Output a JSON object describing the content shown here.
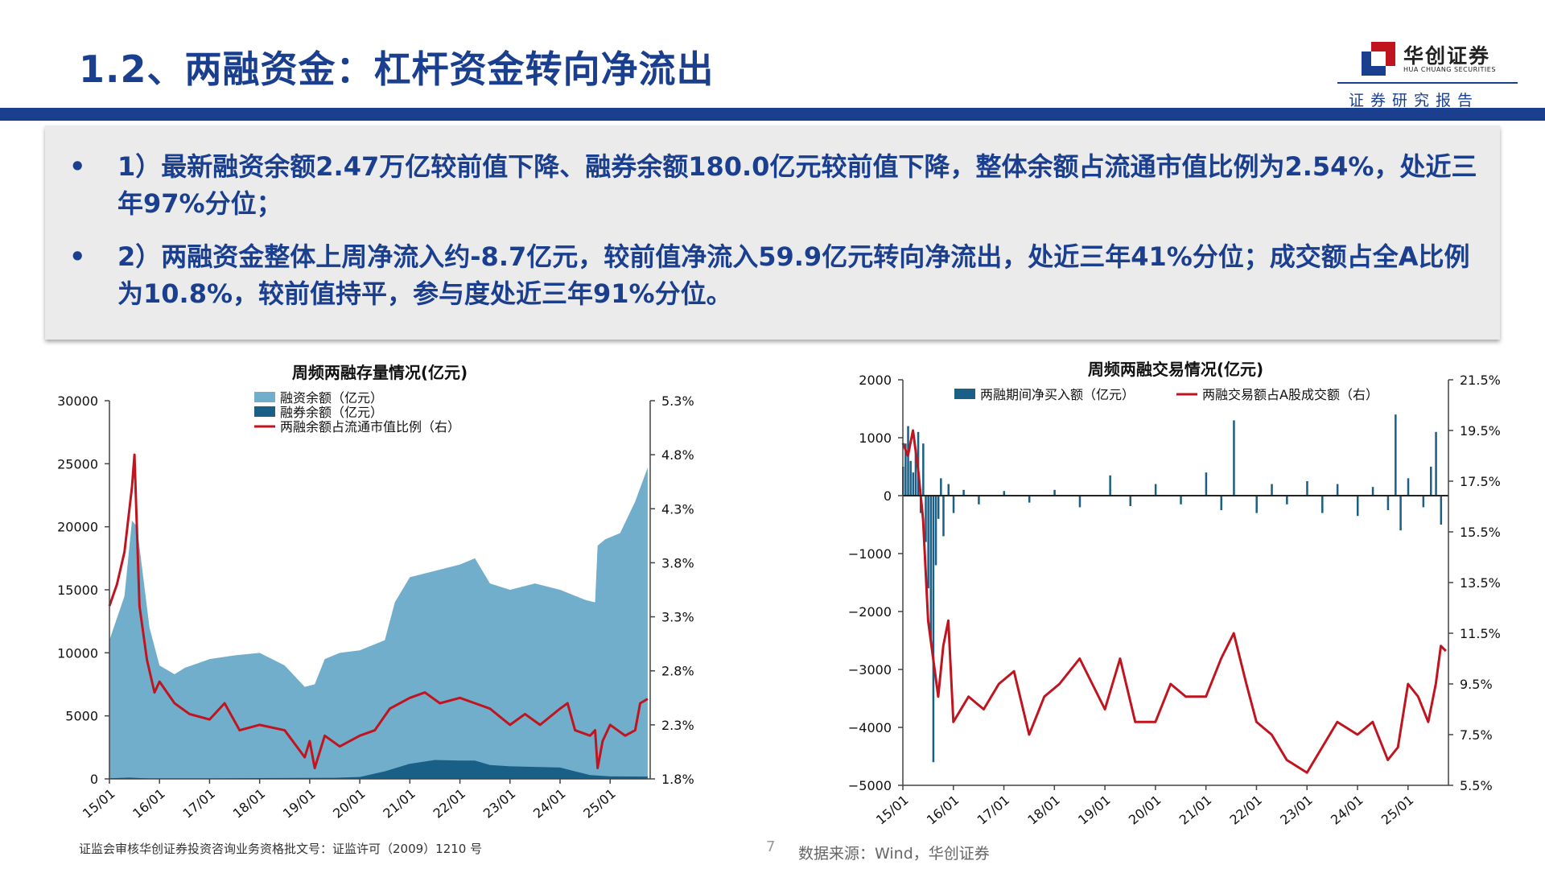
{
  "header": {
    "title": "1.2、两融资金：杠杆资金转向净流出",
    "logo_cn": "华创证券",
    "logo_en": "HUA CHUANG SECURITIES",
    "logo_sub": "证券研究报告",
    "brand_color": "#1b3f8f"
  },
  "summary": {
    "bullets": [
      {
        "marker": "•",
        "text": "1）最新融资余额2.47万亿较前值下降、融券余额180.0亿元较前值下降，整体余额占流通市值比例为2.54%，处近三年97%分位；"
      },
      {
        "marker": "•",
        "text": "2）两融资金整体上周净流入约-8.7亿元，较前值净流入59.9亿元转向净流出，处近三年41%分位；成交额占全A比例为10.8%，较前值持平，参与度处近三年91%分位。"
      }
    ]
  },
  "chart_data": [
    {
      "type": "area",
      "title": "周频两融存量情况(亿元)",
      "x_ticks": [
        "15/01",
        "16/01",
        "17/01",
        "18/01",
        "19/01",
        "20/01",
        "21/01",
        "22/01",
        "23/01",
        "24/01",
        "25/01"
      ],
      "y_left_ticks": [
        "0",
        "5000",
        "10000",
        "15000",
        "20000",
        "25000",
        "30000"
      ],
      "y_right_ticks": [
        "1.8%",
        "2.3%",
        "2.8%",
        "3.3%",
        "3.8%",
        "4.3%",
        "4.8%",
        "5.3%"
      ],
      "ylim": [
        0,
        30000
      ],
      "ylim_right": [
        1.8,
        5.3
      ],
      "legend_position": "top",
      "series": [
        {
          "name": "融资余额（亿元）",
          "axis": "left",
          "color": "#71aecb",
          "x": [
            2015.0,
            2015.3,
            2015.45,
            2015.55,
            2015.8,
            2016.0,
            2016.3,
            2016.5,
            2017.0,
            2017.5,
            2018.0,
            2018.5,
            2018.9,
            2019.1,
            2019.3,
            2019.6,
            2020.0,
            2020.5,
            2020.7,
            2021.0,
            2021.5,
            2022.0,
            2022.3,
            2022.6,
            2023.0,
            2023.5,
            2024.0,
            2024.5,
            2024.7,
            2024.75,
            2024.9,
            2025.2,
            2025.5,
            2025.75
          ],
          "values": [
            11000,
            14500,
            20500,
            20000,
            12000,
            9000,
            8300,
            8800,
            9500,
            9800,
            10000,
            9000,
            7300,
            7500,
            9500,
            10000,
            10200,
            11000,
            14000,
            16000,
            16500,
            17000,
            17500,
            15500,
            15000,
            15500,
            15000,
            14200,
            14000,
            18500,
            19000,
            19500,
            22000,
            24700
          ]
        },
        {
          "name": "融券余额（亿元）",
          "axis": "left",
          "color": "#1a5f86",
          "x": [
            2015.0,
            2015.4,
            2015.8,
            2016.0,
            2017.0,
            2018.0,
            2019.0,
            2019.5,
            2020.0,
            2020.5,
            2021.0,
            2021.5,
            2022.0,
            2022.3,
            2022.6,
            2023.0,
            2023.5,
            2024.0,
            2024.3,
            2024.6,
            2025.0,
            2025.75
          ],
          "values": [
            50,
            100,
            30,
            20,
            30,
            60,
            80,
            90,
            150,
            600,
            1200,
            1500,
            1450,
            1450,
            1100,
            1000,
            950,
            900,
            600,
            300,
            200,
            180
          ]
        },
        {
          "name": "两融余额占流通市值比例（右）",
          "axis": "right",
          "color": "#c0141f",
          "x": [
            2015.0,
            2015.15,
            2015.3,
            2015.45,
            2015.5,
            2015.6,
            2015.75,
            2015.9,
            2016.0,
            2016.3,
            2016.6,
            2017.0,
            2017.3,
            2017.6,
            2018.0,
            2018.5,
            2018.9,
            2019.0,
            2019.1,
            2019.3,
            2019.6,
            2020.0,
            2020.3,
            2020.6,
            2020.8,
            2021.0,
            2021.3,
            2021.6,
            2022.0,
            2022.3,
            2022.6,
            2023.0,
            2023.3,
            2023.6,
            2024.0,
            2024.15,
            2024.3,
            2024.6,
            2024.7,
            2024.75,
            2024.85,
            2025.0,
            2025.3,
            2025.5,
            2025.6,
            2025.75
          ],
          "values": [
            3.4,
            3.6,
            3.9,
            4.5,
            4.8,
            3.4,
            2.9,
            2.6,
            2.7,
            2.5,
            2.4,
            2.35,
            2.5,
            2.25,
            2.3,
            2.25,
            2.0,
            2.15,
            1.9,
            2.2,
            2.1,
            2.2,
            2.25,
            2.45,
            2.5,
            2.55,
            2.6,
            2.5,
            2.55,
            2.5,
            2.45,
            2.3,
            2.4,
            2.3,
            2.45,
            2.5,
            2.25,
            2.2,
            2.25,
            1.9,
            2.15,
            2.3,
            2.2,
            2.25,
            2.5,
            2.54
          ]
        }
      ]
    },
    {
      "type": "bar",
      "title": "周频两融交易情况(亿元)",
      "x_ticks": [
        "15/01",
        "16/01",
        "17/01",
        "18/01",
        "19/01",
        "20/01",
        "21/01",
        "22/01",
        "23/01",
        "24/01",
        "25/01"
      ],
      "y_left_ticks": [
        "−5000",
        "−4000",
        "−3000",
        "−2000",
        "−1000",
        "0",
        "1000",
        "2000"
      ],
      "y_right_ticks": [
        "5.5%",
        "7.5%",
        "9.5%",
        "11.5%",
        "13.5%",
        "15.5%",
        "17.5%",
        "19.5%",
        "21.5%"
      ],
      "ylim": [
        -5000,
        2000
      ],
      "ylim_right": [
        5.5,
        21.5
      ],
      "legend_position": "top",
      "series": [
        {
          "name": "两融期间净买入额（亿元）",
          "axis": "left",
          "color": "#1a5f86",
          "x": [
            2015.0,
            2015.05,
            2015.1,
            2015.15,
            2015.2,
            2015.25,
            2015.3,
            2015.35,
            2015.4,
            2015.45,
            2015.5,
            2015.55,
            2015.6,
            2015.65,
            2015.7,
            2015.75,
            2015.8,
            2015.9,
            2016.0,
            2016.2,
            2016.5,
            2017.0,
            2017.5,
            2018.0,
            2018.5,
            2019.1,
            2019.5,
            2020.0,
            2020.5,
            2021.0,
            2021.3,
            2021.55,
            2022.0,
            2022.3,
            2022.6,
            2023.0,
            2023.3,
            2023.6,
            2024.0,
            2024.3,
            2024.6,
            2024.75,
            2024.85,
            2025.0,
            2025.3,
            2025.45,
            2025.55,
            2025.65,
            2025.75
          ],
          "values": [
            500,
            900,
            1200,
            600,
            400,
            800,
            1100,
            -300,
            900,
            -800,
            -1600,
            -2500,
            -4600,
            -1200,
            -400,
            300,
            -700,
            200,
            -300,
            100,
            -150,
            80,
            -120,
            100,
            -200,
            350,
            -180,
            200,
            -150,
            400,
            -250,
            1300,
            -300,
            200,
            -150,
            250,
            -300,
            200,
            -350,
            150,
            -250,
            1400,
            -600,
            300,
            -200,
            500,
            1100,
            -500,
            -8.7
          ]
        },
        {
          "name": "两融交易额占A股成交额（右）",
          "axis": "right",
          "color": "#c0141f",
          "x": [
            2015.0,
            2015.1,
            2015.2,
            2015.3,
            2015.4,
            2015.45,
            2015.5,
            2015.6,
            2015.7,
            2015.8,
            2015.9,
            2016.0,
            2016.3,
            2016.6,
            2016.9,
            2017.2,
            2017.5,
            2017.8,
            2018.1,
            2018.5,
            2019.0,
            2019.3,
            2019.6,
            2020.0,
            2020.3,
            2020.6,
            2021.0,
            2021.3,
            2021.55,
            2021.8,
            2022.0,
            2022.3,
            2022.6,
            2023.0,
            2023.3,
            2023.6,
            2024.0,
            2024.3,
            2024.6,
            2024.8,
            2025.0,
            2025.2,
            2025.4,
            2025.55,
            2025.65,
            2025.75
          ],
          "values": [
            19,
            18.5,
            19.5,
            18,
            16,
            14,
            12,
            10.5,
            9,
            11,
            12,
            8,
            9,
            8.5,
            9.5,
            10,
            7.5,
            9,
            9.5,
            10.5,
            8.5,
            10.5,
            8,
            8,
            9.5,
            9,
            9,
            10.5,
            11.5,
            9.5,
            8,
            7.5,
            6.5,
            6,
            7,
            8,
            7.5,
            8,
            6.5,
            7,
            9.5,
            9,
            8,
            9.5,
            11,
            10.8
          ]
        }
      ]
    }
  ],
  "footer": {
    "note": "证监会审核华创证券投资咨询业务资格批文号：证监许可（2009）1210 号",
    "page": "7",
    "source": "数据来源：Wind，华创证券"
  }
}
